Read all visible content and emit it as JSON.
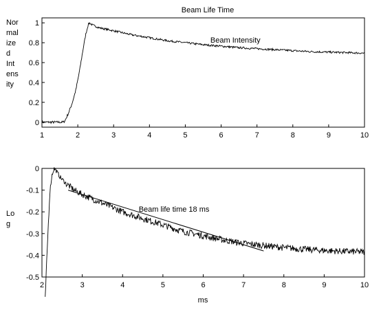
{
  "chart_data": [
    {
      "type": "line",
      "title": "Beam Life Time",
      "xlabel": "",
      "ylabel_lines": [
        "Nor",
        "mal",
        "ize",
        "d",
        "Int",
        "ens",
        "ity"
      ],
      "xlim": [
        1,
        10
      ],
      "ylim": [
        -0.05,
        1.05
      ],
      "xticks": [
        "1",
        "2",
        "3",
        "4",
        "5",
        "6",
        "7",
        "8",
        "9",
        "10"
      ],
      "yticks": [
        "0",
        "0.2",
        "0.4",
        "0.6",
        "0.8",
        "1"
      ],
      "annotations": [
        {
          "text": "Beam Intensity",
          "x": 5.7,
          "y": 0.8
        }
      ],
      "grid": false,
      "series": [
        {
          "x": [
            1.0,
            1.3,
            1.6,
            1.65,
            1.75,
            1.85,
            1.95,
            2.05,
            2.15,
            2.22,
            2.28,
            2.32,
            2.4,
            2.6,
            3.0,
            3.5,
            4.0,
            4.5,
            5.0,
            5.5,
            6.0,
            6.5,
            7.0,
            7.5,
            8.0,
            8.5,
            9.0,
            9.5,
            10.0
          ],
          "y": [
            0.0,
            0.0,
            0.0,
            0.02,
            0.1,
            0.2,
            0.33,
            0.52,
            0.74,
            0.88,
            0.97,
            1.0,
            0.98,
            0.95,
            0.92,
            0.88,
            0.85,
            0.82,
            0.8,
            0.78,
            0.765,
            0.75,
            0.74,
            0.73,
            0.72,
            0.71,
            0.705,
            0.7,
            0.695
          ]
        }
      ]
    },
    {
      "type": "line",
      "title": "",
      "xlabel": "ms",
      "ylabel_lines": [
        "Lo",
        "g"
      ],
      "xlim": [
        2,
        10
      ],
      "ylim": [
        -0.5,
        0
      ],
      "xticks": [
        "2",
        "3",
        "4",
        "5",
        "6",
        "7",
        "8",
        "9",
        "10"
      ],
      "yticks": [
        "0",
        "-0.1",
        "-0.2",
        "-0.3",
        "-0.4",
        "-0.5"
      ],
      "annotations": [
        {
          "text": "Beam life time 18 ms",
          "x": 4.4,
          "y": -0.2
        }
      ],
      "grid": false,
      "series": [
        {
          "x": [
            2.08,
            2.12,
            2.16,
            2.2,
            2.25,
            2.3,
            2.35,
            2.45,
            2.6,
            2.8,
            3.0,
            3.5,
            4.0,
            4.5,
            5.0,
            5.5,
            6.0,
            6.5,
            7.0,
            7.5,
            8.0,
            8.5,
            9.0,
            9.5,
            10.0
          ],
          "y": [
            -0.6,
            -0.42,
            -0.25,
            -0.1,
            -0.03,
            0.0,
            -0.01,
            -0.04,
            -0.07,
            -0.1,
            -0.12,
            -0.16,
            -0.2,
            -0.23,
            -0.26,
            -0.29,
            -0.31,
            -0.33,
            -0.345,
            -0.355,
            -0.365,
            -0.372,
            -0.378,
            -0.382,
            -0.385
          ]
        },
        {
          "x": [
            2.65,
            7.5
          ],
          "y": [
            -0.1,
            -0.38
          ]
        }
      ]
    }
  ]
}
